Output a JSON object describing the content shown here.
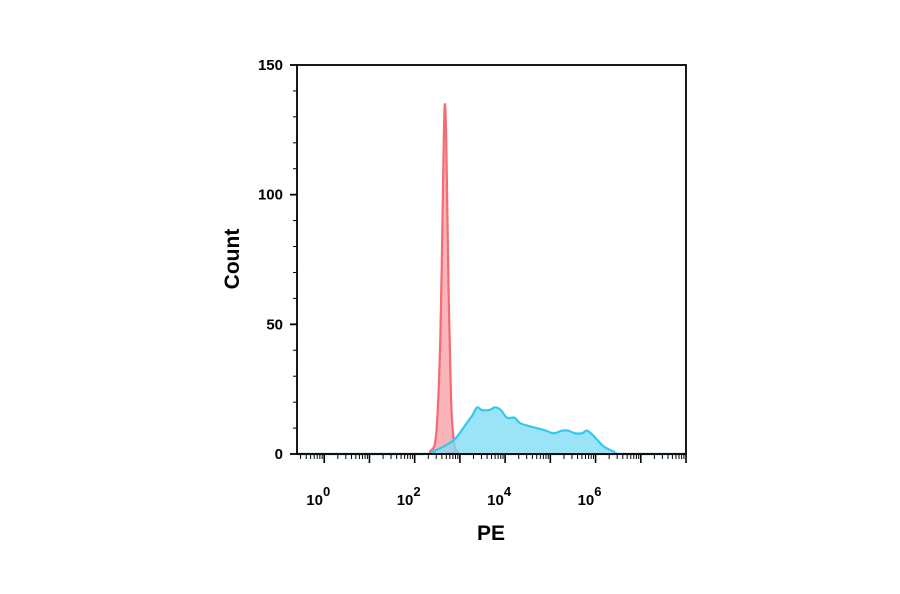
{
  "chart_data": {
    "type": "area",
    "xlabel": "PE",
    "ylabel": "Count",
    "x_scale": "log",
    "xlim": [
      0.25,
      100000000
    ],
    "ylim": [
      0,
      150
    ],
    "grid": false,
    "legend": "none",
    "y_ticks": [
      0,
      50,
      100,
      150
    ],
    "y_tick_labels": [
      "0",
      "50",
      "100",
      "150"
    ],
    "x_ticks": [
      1,
      100,
      10000,
      1000000
    ],
    "x_tick_labels": [
      {
        "base": "10",
        "exp": "0"
      },
      {
        "base": "10",
        "exp": "2"
      },
      {
        "base": "10",
        "exp": "4"
      },
      {
        "base": "10",
        "exp": "6"
      }
    ],
    "series": [
      {
        "color": "#f46b73",
        "fill": "#f7a0a5",
        "points": [
          [
            0.25,
            0
          ],
          [
            150,
            0
          ],
          [
            220,
            1
          ],
          [
            300,
            8
          ],
          [
            370,
            45
          ],
          [
            420,
            100
          ],
          [
            460,
            134
          ],
          [
            500,
            120
          ],
          [
            560,
            65
          ],
          [
            640,
            20
          ],
          [
            750,
            4
          ],
          [
            900,
            1
          ],
          [
            1200,
            0
          ],
          [
            100000000,
            0
          ]
        ]
      },
      {
        "color": "#35c8ef",
        "fill": "#7fdcf6",
        "points": [
          [
            0.25,
            0
          ],
          [
            150,
            0
          ],
          [
            250,
            1
          ],
          [
            450,
            3
          ],
          [
            800,
            6
          ],
          [
            1300,
            11
          ],
          [
            1900,
            15
          ],
          [
            2400,
            18
          ],
          [
            3000,
            17
          ],
          [
            4500,
            17
          ],
          [
            6000,
            18
          ],
          [
            8000,
            17
          ],
          [
            11000,
            14
          ],
          [
            16000,
            14
          ],
          [
            21000,
            12
          ],
          [
            30000,
            11
          ],
          [
            50000,
            10
          ],
          [
            80000,
            9
          ],
          [
            120000,
            8
          ],
          [
            180000,
            9
          ],
          [
            250000,
            9
          ],
          [
            350000,
            8
          ],
          [
            500000,
            8
          ],
          [
            650000,
            9
          ],
          [
            900000,
            7
          ],
          [
            1500000,
            3
          ],
          [
            2500000,
            1
          ],
          [
            4000000,
            0
          ],
          [
            100000000,
            0
          ]
        ]
      }
    ]
  }
}
